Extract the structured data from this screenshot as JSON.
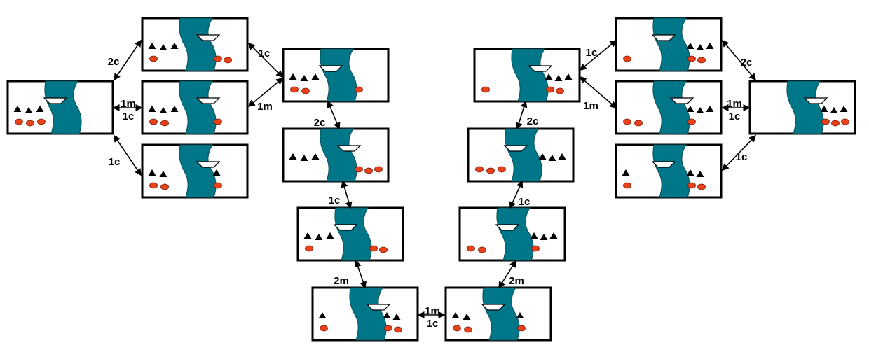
{
  "colors": {
    "river": "#007788",
    "river_stroke": "#0d4f57",
    "cannibal": "#e8421c",
    "cannibal_stroke": "#7a1b06",
    "missionary": "#000000",
    "boat": "#ffffff",
    "frame": "#000000",
    "background": "#ffffff"
  },
  "icons": {
    "missionary": "triangle-icon",
    "cannibal": "oval-icon",
    "boat": "boat-icon"
  },
  "states": [
    {
      "id": "s1",
      "missionaries": {
        "left": 3,
        "right": 0
      },
      "cannibals": {
        "left": 3,
        "right": 0
      },
      "boat": "left"
    },
    {
      "id": "s2",
      "missionaries": {
        "left": 3,
        "right": 0
      },
      "cannibals": {
        "left": 1,
        "right": 2
      },
      "boat": "right"
    },
    {
      "id": "s3",
      "missionaries": {
        "left": 2,
        "right": 1
      },
      "cannibals": {
        "left": 2,
        "right": 1
      },
      "boat": "right"
    },
    {
      "id": "s4",
      "missionaries": {
        "left": 3,
        "right": 0
      },
      "cannibals": {
        "left": 2,
        "right": 1
      },
      "boat": "right"
    },
    {
      "id": "s5",
      "missionaries": {
        "left": 3,
        "right": 0
      },
      "cannibals": {
        "left": 2,
        "right": 1
      },
      "boat": "left"
    },
    {
      "id": "s6",
      "missionaries": {
        "left": 3,
        "right": 0
      },
      "cannibals": {
        "left": 0,
        "right": 3
      },
      "boat": "right"
    },
    {
      "id": "s7",
      "missionaries": {
        "left": 3,
        "right": 0
      },
      "cannibals": {
        "left": 1,
        "right": 2
      },
      "boat": "left"
    },
    {
      "id": "s8",
      "missionaries": {
        "left": 1,
        "right": 2
      },
      "cannibals": {
        "left": 1,
        "right": 2
      },
      "boat": "right"
    },
    {
      "id": "s9",
      "missionaries": {
        "left": 0,
        "right": 3
      },
      "cannibals": {
        "left": 1,
        "right": 2
      },
      "boat": "left"
    },
    {
      "id": "s10",
      "missionaries": {
        "left": 2,
        "right": 1
      },
      "cannibals": {
        "left": 2,
        "right": 1
      },
      "boat": "left"
    },
    {
      "id": "s11",
      "missionaries": {
        "left": 0,
        "right": 3
      },
      "cannibals": {
        "left": 2,
        "right": 1
      },
      "boat": "left"
    },
    {
      "id": "s12",
      "missionaries": {
        "left": 0,
        "right": 3
      },
      "cannibals": {
        "left": 3,
        "right": 0
      },
      "boat": "left"
    },
    {
      "id": "s13",
      "missionaries": {
        "left": 0,
        "right": 3
      },
      "cannibals": {
        "left": 1,
        "right": 2
      },
      "boat": "right"
    },
    {
      "id": "s14",
      "missionaries": {
        "left": 0,
        "right": 3
      },
      "cannibals": {
        "left": 2,
        "right": 1
      },
      "boat": "left"
    },
    {
      "id": "s15",
      "missionaries": {
        "left": 0,
        "right": 3
      },
      "cannibals": {
        "left": 2,
        "right": 1
      },
      "boat": "right"
    },
    {
      "id": "s16",
      "missionaries": {
        "left": 1,
        "right": 2
      },
      "cannibals": {
        "left": 1,
        "right": 2
      },
      "boat": "left"
    },
    {
      "id": "s17",
      "missionaries": {
        "left": 0,
        "right": 3
      },
      "cannibals": {
        "left": 0,
        "right": 3
      },
      "boat": "right"
    }
  ],
  "transitions": [
    {
      "from": "s1",
      "to": "s2",
      "label": "2c"
    },
    {
      "from": "s1",
      "to": "s4",
      "label": "1m"
    },
    {
      "from": "s1",
      "to": "s4",
      "label": "1c"
    },
    {
      "from": "s1",
      "to": "s3",
      "label": "1c"
    },
    {
      "from": "s2",
      "to": "s5",
      "label": "1c"
    },
    {
      "from": "s4",
      "to": "s5",
      "label": "1m"
    },
    {
      "from": "s5",
      "to": "s6",
      "label": "2c"
    },
    {
      "from": "s6",
      "to": "s7",
      "label": "1c"
    },
    {
      "from": "s7",
      "to": "s8",
      "label": "2m"
    },
    {
      "from": "s8",
      "to": "s10",
      "label": "1m"
    },
    {
      "from": "s8",
      "to": "s10",
      "label": "1c"
    },
    {
      "from": "s10",
      "to": "s11",
      "label": "2m"
    },
    {
      "from": "s11",
      "to": "s12",
      "label": "1c"
    },
    {
      "from": "s12",
      "to": "s13",
      "label": "2c"
    },
    {
      "from": "s13",
      "to": "s9",
      "label": "1c"
    },
    {
      "from": "s13",
      "to": "s15",
      "label": "1m"
    },
    {
      "from": "s9",
      "to": "s17",
      "label": "2c"
    },
    {
      "from": "s15",
      "to": "s17",
      "label": "1m"
    },
    {
      "from": "s15",
      "to": "s17",
      "label": "1c"
    },
    {
      "from": "s16",
      "to": "s17",
      "label": "1c"
    }
  ]
}
